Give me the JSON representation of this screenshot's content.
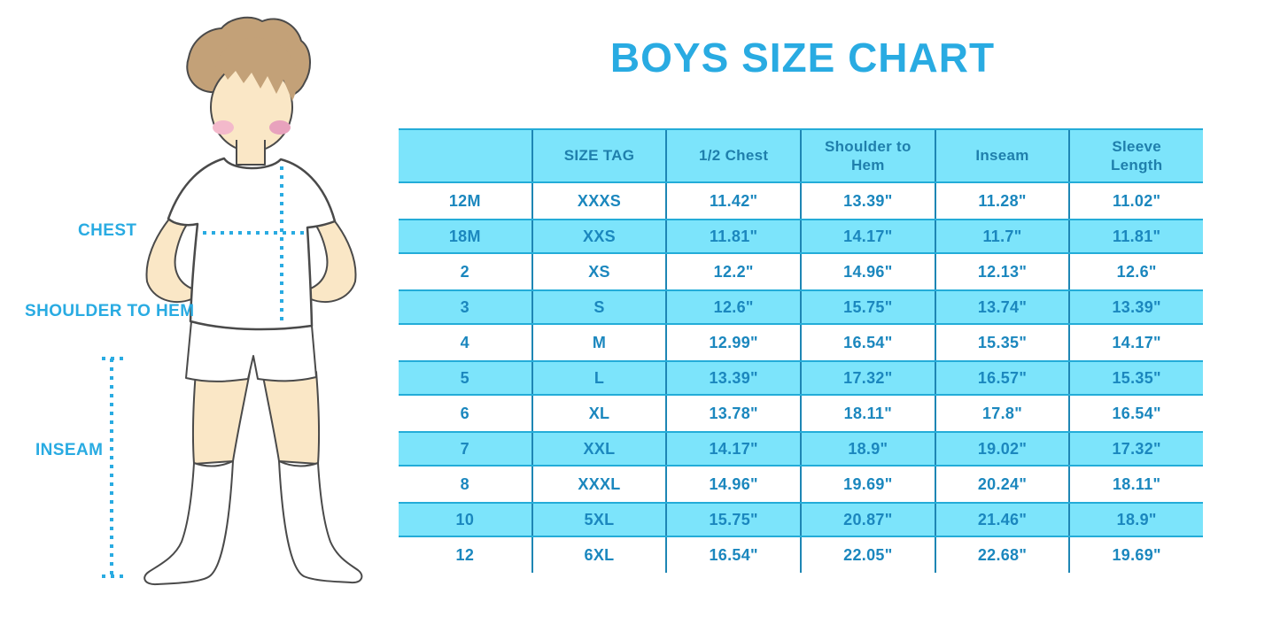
{
  "title": "BOYS SIZE CHART",
  "figure": {
    "labels": {
      "chest": "CHEST",
      "shoulder_to_hem": "SHOULDER TO HEM",
      "inseam": "INSEAM"
    }
  },
  "colors": {
    "accent": "#29ABE2",
    "stripe_fill": "#7CE4FB",
    "stripe_edge": "#23ACD8",
    "column_divider": "#1E86B4",
    "cell_text": "#1B87BE",
    "header_text": "#1F7FAC"
  },
  "chart_data": {
    "type": "table",
    "title": "BOYS SIZE CHART",
    "columns": [
      "",
      "SIZE TAG",
      "1/2 Chest",
      "Shoulder to Hem",
      "Inseam",
      "Sleeve Length"
    ],
    "rows": [
      [
        "12M",
        "XXXS",
        "11.42\"",
        "13.39\"",
        "11.28\"",
        "11.02\""
      ],
      [
        "18M",
        "XXS",
        "11.81\"",
        "14.17\"",
        "11.7\"",
        "11.81\""
      ],
      [
        "2",
        "XS",
        "12.2\"",
        "14.96\"",
        "12.13\"",
        "12.6\""
      ],
      [
        "3",
        "S",
        "12.6\"",
        "15.75\"",
        "13.74\"",
        "13.39\""
      ],
      [
        "4",
        "M",
        "12.99\"",
        "16.54\"",
        "15.35\"",
        "14.17\""
      ],
      [
        "5",
        "L",
        "13.39\"",
        "17.32\"",
        "16.57\"",
        "15.35\""
      ],
      [
        "6",
        "XL",
        "13.78\"",
        "18.11\"",
        "17.8\"",
        "16.54\""
      ],
      [
        "7",
        "XXL",
        "14.17\"",
        "18.9\"",
        "19.02\"",
        "17.32\""
      ],
      [
        "8",
        "XXXL",
        "14.96\"",
        "19.69\"",
        "20.24\"",
        "18.11\""
      ],
      [
        "10",
        "5XL",
        "15.75\"",
        "20.87\"",
        "21.46\"",
        "18.9\""
      ],
      [
        "12",
        "6XL",
        "16.54\"",
        "22.05\"",
        "22.68\"",
        "19.69\""
      ]
    ],
    "layout": {
      "striped": true,
      "stripe_pattern": "header and every second data row filled light cyan",
      "grid": "vertical column dividers only, no outer border",
      "units": "inches"
    }
  }
}
